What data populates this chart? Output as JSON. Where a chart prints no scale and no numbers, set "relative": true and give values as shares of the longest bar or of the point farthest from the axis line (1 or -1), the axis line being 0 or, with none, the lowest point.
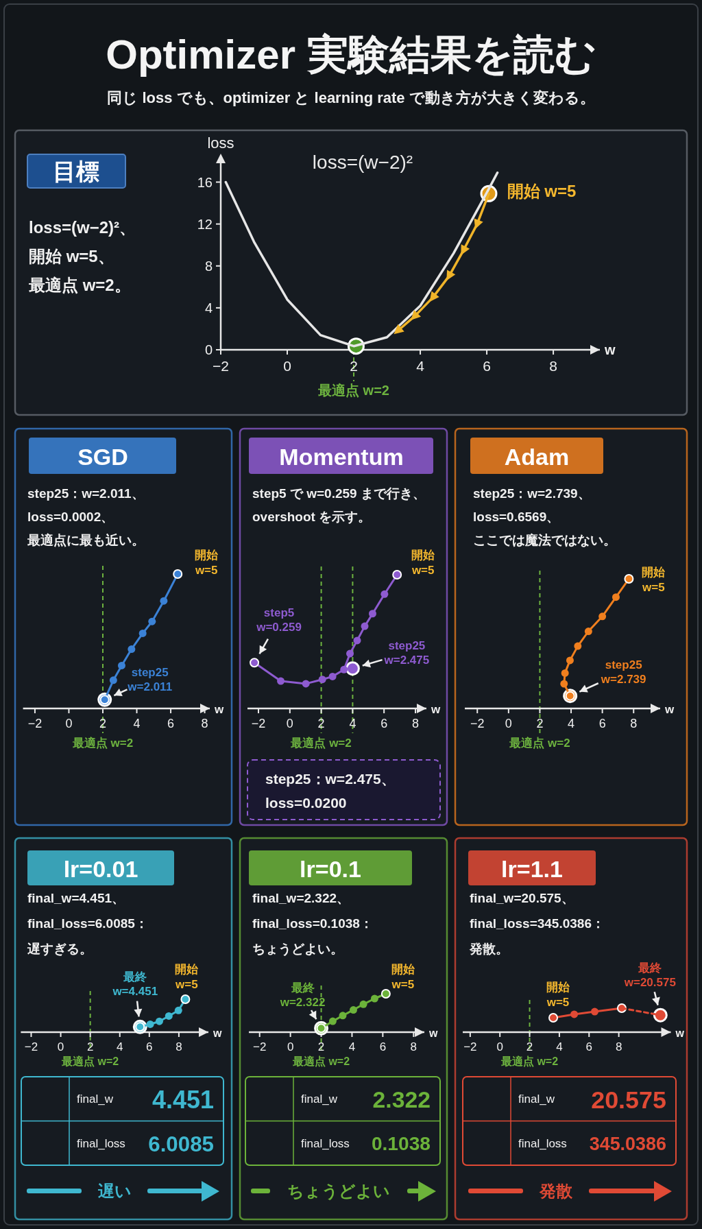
{
  "chart_data": [
    {
      "type": "other",
      "title": "Optimizer 実験結果を読む",
      "subtitle": "同じ loss でも、optimizer と learning rate で動き方が大きく変わる。"
    },
    {
      "type": "line",
      "title": "目標",
      "subtitle": "loss=(w−2)²、開始 w=5、最適点 w=2。",
      "xlabel": "w",
      "ylabel": "loss",
      "xlim": [
        -2,
        9.4
      ],
      "xticks": [
        -2,
        0,
        2,
        4,
        6,
        8
      ],
      "ylim": [
        0,
        17.8
      ],
      "yticks": [
        0,
        4,
        8,
        12,
        16
      ],
      "series": [
        {
          "color": "#e6e6e6",
          "x": [
            -1.85,
            -1,
            0,
            1,
            2,
            3,
            4,
            5,
            6,
            6.32
          ],
          "values": [
            16.0,
            10.3,
            4.8,
            1.4,
            0.35,
            1.2,
            4.2,
            9.2,
            15.0,
            16.9
          ]
        },
        {
          "color": "#f0b429",
          "marker": "triangle",
          "x": [
            6.06,
            5.71,
            5.3,
            4.87,
            4.38,
            3.83,
            3.33
          ],
          "values": [
            14.9,
            12.0,
            9.5,
            7.06,
            5.0,
            3.2,
            1.83
          ]
        },
        {
          "type": "scatter",
          "color": "#e09a1a",
          "x": [
            6.06
          ],
          "values": [
            14.9
          ]
        },
        {
          "type": "scatter",
          "color": "#4f9a2a",
          "x": [
            2.07
          ],
          "values": [
            0.35
          ]
        }
      ],
      "ref_lines": [
        {
          "axis": "x",
          "value": 2,
          "label": "最適点 w=2",
          "color": "#6db33f",
          "line_style": "dashed"
        }
      ],
      "annotations": [
        "loss=(w−2)²",
        {
          "text": "開始 w=5",
          "x": 6.06,
          "y": 14.9
        }
      ]
    },
    {
      "type": "line",
      "relative": true,
      "title": "SGD",
      "subtitle": "step25：w=2.011、loss=0.0002、最適点に最も近い。",
      "xlabel": "w",
      "xlim": [
        -2.7,
        8.3
      ],
      "xticks": [
        -2,
        0,
        2,
        4,
        6,
        8
      ],
      "series": [
        {
          "color": "#3b82d6",
          "marker": "circle",
          "x": [
            6.41,
            5.59,
            4.9,
            4.35,
            3.69,
            3.11,
            2.62,
            2.11
          ],
          "values": [
            1,
            0.8,
            0.647,
            0.559,
            0.441,
            0.319,
            0.21,
            0.065
          ]
        },
        {
          "type": "scatter",
          "color": "#3b82d6",
          "x": [
            2.11
          ],
          "values": [
            0.065
          ]
        }
      ],
      "ref_lines": [
        {
          "axis": "x",
          "value": 2,
          "label": "最適点 w=2",
          "color": "#6db33f",
          "line_style": "dashed"
        }
      ],
      "annotations": [
        {
          "text": "開始\nw=5",
          "x": 6.41,
          "y": 1
        },
        {
          "text": "step25\nw=2.011",
          "x": 2.11,
          "y": 0.065
        }
      ]
    },
    {
      "type": "line",
      "relative": true,
      "title": "Momentum",
      "subtitle": "step5 で w=0.259 まで行き、overshoot を示す。",
      "xlabel": "w",
      "xlim": [
        -2.7,
        8.7
      ],
      "xticks": [
        -2,
        0,
        2,
        4,
        6,
        8
      ],
      "series": [
        {
          "color": "#8e5bd0",
          "marker": "circle",
          "x": [
            6.83,
            6.03,
            5.27,
            4.77,
            4.29,
            3.83,
            3.45,
            2.72,
            2.07,
            1.02,
            -0.58,
            -2.26
          ],
          "values": [
            1,
            0.855,
            0.709,
            0.615,
            0.508,
            0.41,
            0.291,
            0.239,
            0.217,
            0.185,
            0.205,
            0.342
          ]
        },
        {
          "type": "scatter",
          "color": "#8e5bd0",
          "x": [
            4.0
          ],
          "values": [
            0.299
          ]
        }
      ],
      "ref_lines": [
        {
          "axis": "x",
          "value": 2,
          "label": "最適点 w=2",
          "color": "#6db33f",
          "line_style": "dashed"
        },
        {
          "axis": "x",
          "value": 4,
          "color": "#6db33f",
          "line_style": "dashed"
        }
      ],
      "annotations": [
        "step25：w=2.475、\nloss=0.0200",
        {
          "text": "開始\nw=5",
          "x": 6.83,
          "y": 1
        },
        {
          "text": "step5\nw=0.259",
          "x": -2.26,
          "y": 0.342
        },
        {
          "text": "step25\nw=2.475",
          "x": 4.0,
          "y": 0.299
        }
      ]
    },
    {
      "type": "line",
      "relative": true,
      "title": "Adam",
      "subtitle": "step25：w=2.739、loss=0.6569、ここでは魔法ではない。",
      "xlabel": "w",
      "xlim": [
        -2.8,
        9.7
      ],
      "xticks": [
        -2,
        0,
        2,
        4,
        6,
        8
      ],
      "series": [
        {
          "color": "#f07f1e",
          "marker": "circle",
          "x": [
            7.7,
            6.87,
            6.0,
            5.11,
            4.43,
            3.93,
            3.61,
            3.55,
            3.94
          ],
          "values": [
            1,
            0.859,
            0.71,
            0.595,
            0.481,
            0.371,
            0.273,
            0.19,
            0.097
          ]
        },
        {
          "type": "scatter",
          "color": "#f07f1e",
          "x": [
            3.94
          ],
          "values": [
            0.097
          ]
        }
      ],
      "ref_lines": [
        {
          "axis": "x",
          "value": 2,
          "label": "最適点 w=2",
          "color": "#6db33f",
          "line_style": "dashed"
        }
      ],
      "annotations": [
        {
          "text": "開始\nw=5",
          "x": 7.7,
          "y": 1
        },
        {
          "text": "step25\nw=2.739",
          "x": 3.94,
          "y": 0.097
        }
      ]
    },
    {
      "type": "line",
      "relative": true,
      "title": "lr=0.01",
      "subtitle": "final_w=4.451、final_loss=6.0085：遅すぎる。",
      "xlabel": "w",
      "xlim": [
        -2.7,
        10
      ],
      "xticks": [
        -2,
        0,
        2,
        4,
        6,
        8
      ],
      "series": [
        {
          "color": "#3fb8d0",
          "marker": "circle",
          "x": [
            8.44,
            7.97,
            7.32,
            6.68,
            6.06,
            5.37
          ],
          "values": [
            1,
            0.66,
            0.49,
            0.33,
            0.24,
            0.16
          ]
        },
        {
          "type": "scatter",
          "color": "#3fb8d0",
          "x": [
            5.37
          ],
          "values": [
            0.16
          ]
        }
      ],
      "ref_lines": [
        {
          "axis": "x",
          "value": 2,
          "label": "最適点 w=2",
          "color": "#6db33f",
          "line_style": "dashed"
        }
      ],
      "annotations": [
        "final_w",
        "4.451",
        "final_loss",
        "6.0085",
        "遅い",
        {
          "text": "最終\nw=4.451",
          "x": 5.37,
          "y": 0.16
        },
        {
          "text": "開始\nw=5",
          "x": 8.44,
          "y": 1
        }
      ]
    },
    {
      "type": "line",
      "relative": true,
      "title": "lr=0.1",
      "subtitle": "final_w=2.322、final_loss=0.1038：ちょうどよい。",
      "xlabel": "w",
      "xlim": [
        -2.7,
        8.7
      ],
      "xticks": [
        -2,
        0,
        2,
        4,
        6,
        8
      ],
      "series": [
        {
          "color": "#6cb33a",
          "marker": "circle",
          "x": [
            6.2,
            5.47,
            4.74,
            4.09,
            3.4,
            2.75,
            2.0
          ],
          "values": [
            1,
            0.875,
            0.727,
            0.58,
            0.432,
            0.284,
            0.102
          ]
        },
        {
          "type": "scatter",
          "color": "#6cb33a",
          "x": [
            2.0
          ],
          "values": [
            0.102
          ]
        }
      ],
      "ref_lines": [
        {
          "axis": "x",
          "value": 2,
          "label": "最適点 w=2",
          "color": "#6db33f",
          "line_style": "dashed"
        }
      ],
      "annotations": [
        "final_w",
        "2.322",
        "final_loss",
        "0.1038",
        "ちょうどよい",
        {
          "text": "最終\nw=2.322",
          "x": 2.0,
          "y": 0.102
        },
        {
          "text": "開始\nw=5",
          "x": 6.2,
          "y": 1
        }
      ]
    },
    {
      "type": "line",
      "relative": true,
      "title": "lr=1.1",
      "subtitle": "final_w=20.575、final_loss=345.0386：発散。",
      "xlabel": "w",
      "xlim": [
        -2.5,
        11.5
      ],
      "xticks": [
        -2,
        0,
        2,
        4,
        6,
        8
      ],
      "series": [
        {
          "color": "#e04a35",
          "marker": "circle",
          "x": [
            3.59,
            5.0,
            6.38,
            8.2
          ],
          "values": [
            0.6,
            0.745,
            0.855,
            1
          ]
        },
        {
          "color": "#e04a35",
          "line_style": "dashed",
          "x": [
            8.2,
            10.8
          ],
          "values": [
            1,
            0.709
          ]
        },
        {
          "type": "scatter",
          "color": "#e04a35",
          "x": [
            10.8
          ],
          "values": [
            0.709
          ]
        }
      ],
      "ref_lines": [
        {
          "axis": "x",
          "value": 2,
          "label": "最適点 w=2",
          "color": "#6db33f",
          "line_style": "dashed"
        }
      ],
      "annotations": [
        "final_w",
        "20.575",
        "final_loss",
        "345.0386",
        "発散",
        {
          "text": "開始\nw=5",
          "x": 3.59,
          "y": 0.6
        },
        {
          "text": "最終\nw=20.575",
          "x": 10.8,
          "y": 0.709
        }
      ]
    }
  ]
}
